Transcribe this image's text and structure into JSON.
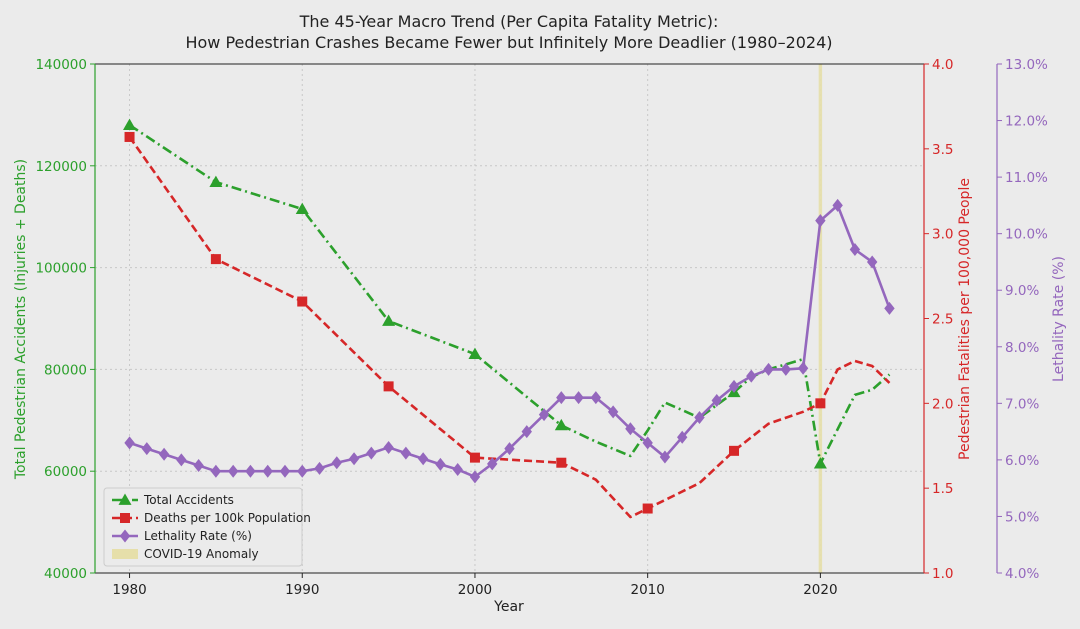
{
  "chart_data": {
    "type": "line",
    "title": "The 45-Year Macro Trend (Per Capita Fatality Metric):",
    "subtitle": "How Pedestrian Crashes Became Fewer but Infinitely More Deadlier (1980–2024)",
    "xlabel": "Year",
    "xlim": [
      1978,
      2026
    ],
    "xticks": [
      1980,
      1990,
      2000,
      2010,
      2020
    ],
    "grid": true,
    "legend_position": "bottom-left",
    "axes": {
      "left": {
        "label": "Total Pedestrian Accidents (Injuries + Deaths)",
        "color": "#2ca02c",
        "ylim": [
          40000,
          140000
        ],
        "ticks": [
          "40000",
          "60000",
          "80000",
          "100000",
          "120000",
          "140000"
        ]
      },
      "right1": {
        "label": "Pedestrian Fatalities per 100,000 People",
        "color": "#d62728",
        "ylim": [
          1.0,
          4.0
        ],
        "ticks": [
          "1.0",
          "1.5",
          "2.0",
          "2.5",
          "3.0",
          "3.5",
          "4.0"
        ]
      },
      "right2": {
        "label": "Lethality Rate (%)",
        "color": "#9467bd",
        "ylim": [
          4.0,
          13.0
        ],
        "ticks": [
          "4.0%",
          "5.0%",
          "6.0%",
          "7.0%",
          "8.0%",
          "9.0%",
          "10.0%",
          "11.0%",
          "12.0%",
          "13.0%"
        ]
      }
    },
    "series": [
      {
        "name": "Total Accidents",
        "axis": "left",
        "color": "#2ca02c",
        "marker": "triangle",
        "linestyle": "dashdot",
        "x": [
          1980,
          1985,
          1990,
          1995,
          2000,
          2005,
          2007,
          2009,
          2010,
          2011,
          2013,
          2015,
          2016,
          2017,
          2018,
          2019,
          2020,
          2022,
          2023,
          2024
        ],
        "y": [
          128000,
          116800,
          111500,
          89500,
          83000,
          69000,
          65800,
          63000,
          68000,
          73500,
          70500,
          75500,
          78500,
          80000,
          81000,
          82000,
          61500,
          75000,
          76000,
          79000
        ],
        "marker_x": [
          1980,
          1985,
          1990,
          1995,
          2000,
          2005,
          2015,
          2020
        ]
      },
      {
        "name": "Deaths per 100k Population",
        "axis": "right1",
        "color": "#d62728",
        "marker": "square",
        "linestyle": "dashed",
        "x": [
          1980,
          1985,
          1990,
          1995,
          2000,
          2005,
          2007,
          2009,
          2010,
          2011,
          2013,
          2015,
          2017,
          2019,
          2020,
          2021,
          2022,
          2023,
          2024
        ],
        "y": [
          3.57,
          2.85,
          2.6,
          2.1,
          1.68,
          1.65,
          1.55,
          1.33,
          1.38,
          1.43,
          1.53,
          1.72,
          1.88,
          1.95,
          2.0,
          2.2,
          2.25,
          2.22,
          2.12
        ],
        "marker_x": [
          1980,
          1985,
          1990,
          1995,
          2000,
          2005,
          2010,
          2015,
          2020
        ]
      },
      {
        "name": "Lethality Rate (%)",
        "axis": "right2",
        "color": "#9467bd",
        "marker": "diamond",
        "linestyle": "solid",
        "x": [
          1980,
          1981,
          1982,
          1983,
          1984,
          1985,
          1986,
          1987,
          1988,
          1989,
          1990,
          1991,
          1992,
          1993,
          1994,
          1995,
          1996,
          1997,
          1998,
          1999,
          2000,
          2001,
          2002,
          2003,
          2004,
          2005,
          2006,
          2007,
          2008,
          2009,
          2010,
          2011,
          2012,
          2013,
          2014,
          2015,
          2016,
          2017,
          2018,
          2019,
          2020,
          2021,
          2022,
          2023,
          2024
        ],
        "y": [
          6.3,
          6.2,
          6.1,
          6.0,
          5.9,
          5.8,
          5.8,
          5.8,
          5.8,
          5.8,
          5.8,
          5.85,
          5.95,
          6.02,
          6.12,
          6.22,
          6.12,
          6.02,
          5.92,
          5.83,
          5.7,
          5.93,
          6.2,
          6.5,
          6.8,
          7.1,
          7.1,
          7.1,
          6.85,
          6.55,
          6.3,
          6.05,
          6.4,
          6.75,
          7.05,
          7.3,
          7.48,
          7.6,
          7.6,
          7.62,
          10.23,
          10.5,
          9.72,
          9.5,
          8.68
        ]
      }
    ],
    "annotations": [
      {
        "name": "COVID-19 Anomaly",
        "type": "vspan",
        "x": [
          2019.9,
          2020.1
        ],
        "color": "#e6dfaa"
      }
    ]
  }
}
